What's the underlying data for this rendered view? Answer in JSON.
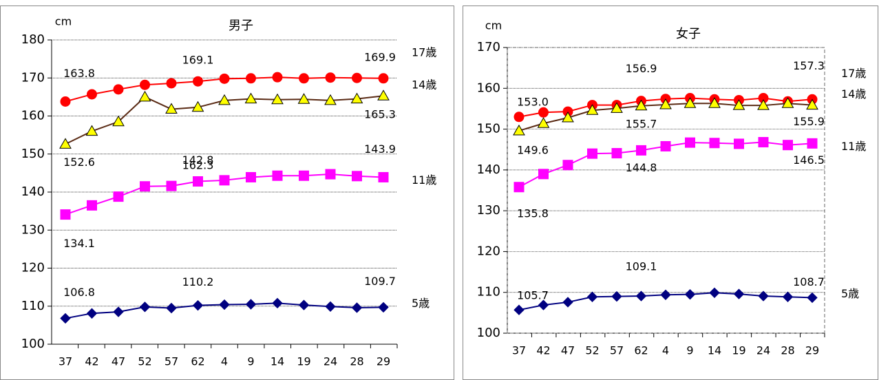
{
  "chart_data": [
    {
      "type": "line",
      "title": "男子",
      "unit": "cm",
      "categories": [
        "37",
        "42",
        "47",
        "52",
        "57",
        "62",
        "4",
        "9",
        "14",
        "19",
        "24",
        "28",
        "29"
      ],
      "ylim": [
        100,
        180
      ],
      "yticks": [
        100,
        110,
        120,
        130,
        140,
        150,
        160,
        170,
        180
      ],
      "grid": true,
      "series": [
        {
          "name": "17歳",
          "color": "#ff0000",
          "marker": "circle",
          "marker_color": "#ff0000",
          "values": [
            163.8,
            165.7,
            167.0,
            168.2,
            168.6,
            169.1,
            169.8,
            169.9,
            170.2,
            169.9,
            170.1,
            170.0,
            169.9
          ],
          "value_labels": [
            "163.8",
            null,
            null,
            null,
            null,
            "169.1",
            null,
            null,
            null,
            null,
            null,
            null,
            "169.9"
          ]
        },
        {
          "name": "14歳",
          "color": "#5a2a14",
          "marker": "triangle",
          "marker_color": "#ffff00",
          "values": [
            152.6,
            156.0,
            158.5,
            165.0,
            161.8,
            162.3,
            164.1,
            164.5,
            164.3,
            164.4,
            164.1,
            164.5,
            165.3
          ],
          "value_labels": [
            "152.6",
            null,
            null,
            null,
            null,
            "162.3",
            null,
            null,
            null,
            null,
            null,
            null,
            "165.3"
          ]
        },
        {
          "name": "11歳",
          "color": "#ff00ff",
          "marker": "square",
          "marker_color": "#ff00ff",
          "values": [
            134.1,
            136.5,
            138.8,
            141.5,
            141.6,
            142.8,
            143.1,
            143.9,
            144.3,
            144.3,
            144.7,
            144.2,
            143.9
          ],
          "value_labels": [
            "134.1",
            null,
            null,
            null,
            null,
            "142.8",
            null,
            null,
            null,
            null,
            null,
            null,
            "143.9"
          ]
        },
        {
          "name": "5歳",
          "color": "#000080",
          "marker": "diamond",
          "marker_color": "#000080",
          "values": [
            106.8,
            108.1,
            108.5,
            109.8,
            109.5,
            110.2,
            110.4,
            110.5,
            110.8,
            110.3,
            109.9,
            109.6,
            109.7
          ],
          "value_labels": [
            "106.8",
            null,
            null,
            null,
            null,
            "110.2",
            null,
            null,
            null,
            null,
            null,
            null,
            "109.7"
          ]
        }
      ]
    },
    {
      "type": "line",
      "title": "女子",
      "unit": "cm",
      "categories": [
        "37",
        "42",
        "47",
        "52",
        "57",
        "62",
        "4",
        "9",
        "14",
        "19",
        "24",
        "28",
        "29"
      ],
      "ylim": [
        100,
        170
      ],
      "yticks": [
        100,
        110,
        120,
        130,
        140,
        150,
        160,
        170
      ],
      "grid": true,
      "series": [
        {
          "name": "17歳",
          "color": "#ff0000",
          "marker": "circle",
          "marker_color": "#ff0000",
          "values": [
            153.0,
            154.1,
            154.3,
            155.9,
            155.9,
            156.9,
            157.4,
            157.6,
            157.3,
            157.1,
            157.6,
            156.8,
            157.3
          ],
          "value_labels": [
            "153.0",
            null,
            null,
            null,
            null,
            "156.9",
            null,
            null,
            null,
            null,
            null,
            null,
            "157.3"
          ]
        },
        {
          "name": "14歳",
          "color": "#5a2a14",
          "marker": "triangle",
          "marker_color": "#ffff00",
          "values": [
            149.6,
            151.4,
            152.8,
            154.6,
            155.1,
            155.7,
            156.0,
            156.3,
            156.3,
            155.8,
            155.8,
            156.3,
            155.9
          ],
          "value_labels": [
            "149.6",
            null,
            null,
            null,
            null,
            "155.7",
            null,
            null,
            null,
            null,
            null,
            null,
            "155.9"
          ]
        },
        {
          "name": "11歳",
          "color": "#ff00ff",
          "marker": "square",
          "marker_color": "#ff00ff",
          "values": [
            135.8,
            139.0,
            141.2,
            144.0,
            144.1,
            144.8,
            145.8,
            146.7,
            146.6,
            146.4,
            146.8,
            146.1,
            146.5
          ],
          "value_labels": [
            "135.8",
            null,
            null,
            null,
            null,
            "144.8",
            null,
            null,
            null,
            null,
            null,
            null,
            "146.5"
          ]
        },
        {
          "name": "5歳",
          "color": "#000080",
          "marker": "diamond",
          "marker_color": "#000080",
          "values": [
            105.7,
            106.9,
            107.6,
            108.9,
            109.0,
            109.1,
            109.4,
            109.5,
            109.9,
            109.6,
            109.1,
            108.9,
            108.7
          ],
          "value_labels": [
            "105.7",
            null,
            null,
            null,
            null,
            "109.1",
            null,
            null,
            null,
            null,
            null,
            null,
            "108.7"
          ]
        }
      ]
    }
  ]
}
